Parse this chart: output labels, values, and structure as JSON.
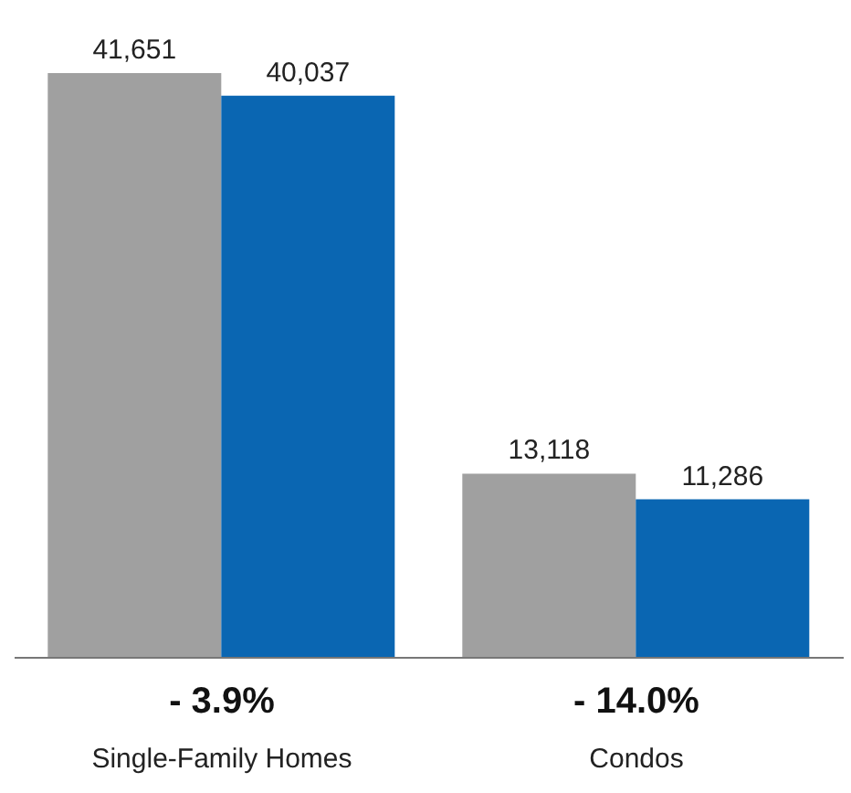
{
  "chart_data": {
    "type": "bar",
    "categories": [
      "Single-Family Homes",
      "Condos"
    ],
    "series": [
      {
        "color": "#a0a0a0",
        "values": [
          41651,
          13118
        ],
        "value_labels": [
          "41,651",
          "13,118"
        ]
      },
      {
        "color": "#0a66b2",
        "values": [
          40037,
          11286
        ],
        "value_labels": [
          "40,037",
          "11,286"
        ]
      }
    ],
    "grid": false,
    "legend": false,
    "annotations": [
      "- 3.9%",
      "- 14.0%"
    ]
  }
}
